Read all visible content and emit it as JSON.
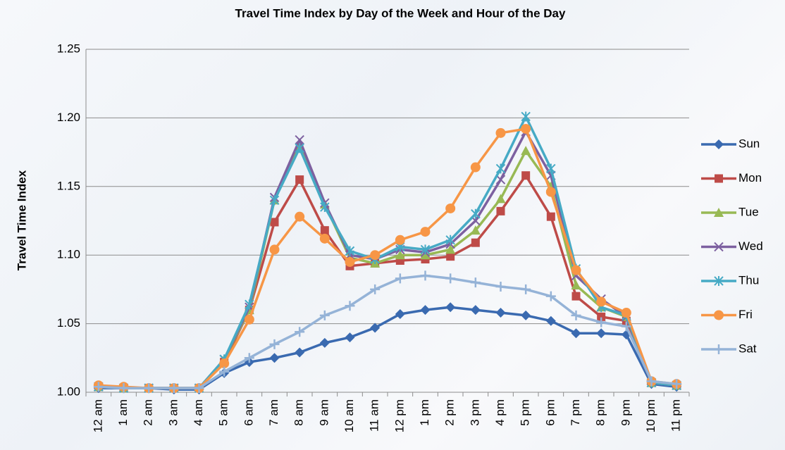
{
  "chart_data": {
    "type": "line",
    "title": "Travel Time Index by Day of the Week and Hour of the Day",
    "y_label": "Travel Time Index",
    "categories": [
      "12 am",
      "1 am",
      "2 am",
      "3 am",
      "4 am",
      "5 am",
      "6 am",
      "7 am",
      "8 am",
      "9 am",
      "10 am",
      "11 am",
      "12 pm",
      "1 pm",
      "2 pm",
      "3 pm",
      "4 pm",
      "5 pm",
      "6 pm",
      "7 pm",
      "8 pm",
      "9 pm",
      "10 pm",
      "11 pm"
    ],
    "ylim": [
      1.0,
      1.25
    ],
    "yticks": [
      {
        "value": 1.0,
        "label": "1.00"
      },
      1.05,
      {
        "value": 1.1,
        "label": "1.10"
      },
      1.15,
      {
        "value": 1.2,
        "label": "1.20"
      },
      1.25
    ],
    "grid": true,
    "legend": "right",
    "series": [
      {
        "name": "Sun",
        "color": "#3a6ab0",
        "marker": "diamond",
        "values": [
          1.003,
          1.003,
          1.003,
          1.002,
          1.002,
          1.014,
          1.022,
          1.025,
          1.029,
          1.036,
          1.04,
          1.047,
          1.057,
          1.06,
          1.062,
          1.06,
          1.058,
          1.056,
          1.052,
          1.043,
          1.043,
          1.042,
          1.006,
          1.004
        ]
      },
      {
        "name": "Mon",
        "color": "#be4b48",
        "marker": "square",
        "values": [
          1.004,
          1.003,
          1.003,
          1.003,
          1.003,
          1.022,
          1.06,
          1.124,
          1.155,
          1.118,
          1.092,
          1.094,
          1.096,
          1.097,
          1.099,
          1.109,
          1.132,
          1.158,
          1.128,
          1.07,
          1.055,
          1.052,
          1.007,
          1.005
        ]
      },
      {
        "name": "Tue",
        "color": "#98b954",
        "marker": "triangle",
        "values": [
          1.004,
          1.003,
          1.003,
          1.003,
          1.003,
          1.024,
          1.06,
          1.14,
          1.18,
          1.137,
          1.098,
          1.094,
          1.1,
          1.1,
          1.104,
          1.118,
          1.141,
          1.176,
          1.15,
          1.078,
          1.062,
          1.055,
          1.007,
          1.005
        ]
      },
      {
        "name": "Wed",
        "color": "#7d60a0",
        "marker": "x",
        "values": [
          1.004,
          1.003,
          1.003,
          1.003,
          1.003,
          1.024,
          1.062,
          1.142,
          1.184,
          1.138,
          1.1,
          1.097,
          1.104,
          1.102,
          1.108,
          1.125,
          1.155,
          1.19,
          1.158,
          1.085,
          1.068,
          1.055,
          1.007,
          1.005
        ]
      },
      {
        "name": "Thu",
        "color": "#46aac5",
        "marker": "star",
        "values": [
          1.004,
          1.003,
          1.003,
          1.003,
          1.003,
          1.024,
          1.064,
          1.14,
          1.178,
          1.135,
          1.103,
          1.097,
          1.106,
          1.104,
          1.111,
          1.13,
          1.163,
          1.201,
          1.163,
          1.09,
          1.062,
          1.056,
          1.007,
          1.005
        ]
      },
      {
        "name": "Fri",
        "color": "#f79646",
        "marker": "circle",
        "values": [
          1.005,
          1.004,
          1.003,
          1.003,
          1.003,
          1.021,
          1.053,
          1.104,
          1.128,
          1.112,
          1.095,
          1.1,
          1.111,
          1.117,
          1.134,
          1.164,
          1.189,
          1.192,
          1.146,
          1.089,
          1.066,
          1.058,
          1.008,
          1.006
        ]
      },
      {
        "name": "Sat",
        "color": "#95b3d7",
        "marker": "plus",
        "values": [
          1.004,
          1.003,
          1.003,
          1.003,
          1.003,
          1.015,
          1.025,
          1.035,
          1.044,
          1.056,
          1.063,
          1.075,
          1.083,
          1.085,
          1.083,
          1.08,
          1.077,
          1.075,
          1.07,
          1.056,
          1.051,
          1.048,
          1.008,
          1.006
        ]
      }
    ]
  }
}
